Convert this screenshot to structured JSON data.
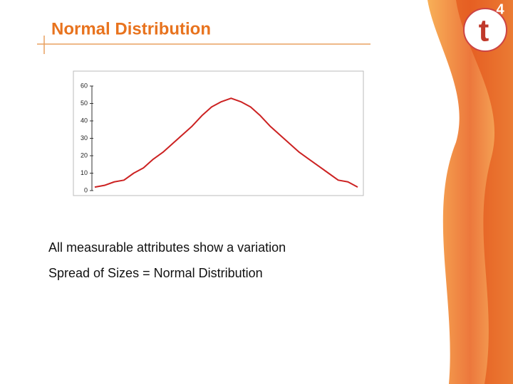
{
  "slide": {
    "title": "Normal Distribution",
    "logo": {
      "letter": "t",
      "digit": "4"
    },
    "bullets": [
      "All measurable attributes show a variation",
      "Spread of Sizes = Normal Distribution"
    ]
  },
  "chart_data": {
    "type": "line",
    "categories": [
      null,
      null,
      null,
      null,
      null,
      null,
      null,
      null,
      null,
      null,
      null,
      null,
      null,
      null,
      null,
      null,
      null,
      null,
      null,
      null,
      null,
      null,
      null,
      null,
      null,
      null,
      null,
      null
    ],
    "values": [
      2,
      3,
      5,
      6,
      10,
      13,
      18,
      22,
      27,
      32,
      37,
      43,
      48,
      51,
      53,
      51,
      48,
      43,
      37,
      32,
      27,
      22,
      18,
      14,
      10,
      6,
      5,
      2
    ],
    "color": "#cc2222",
    "ylim": [
      0,
      60
    ],
    "yticks": [
      0,
      10,
      20,
      30,
      40,
      50,
      60
    ]
  }
}
